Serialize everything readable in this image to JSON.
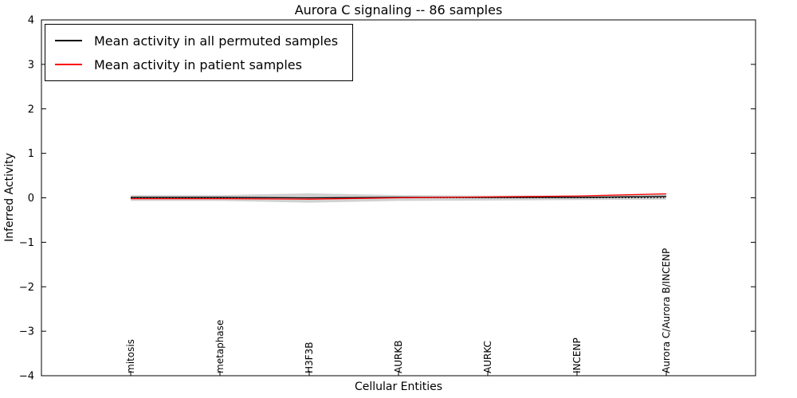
{
  "chart_data": {
    "type": "line",
    "title": "Aurora C signaling -- 86 samples",
    "xlabel": "Cellular Entities",
    "ylabel": "Inferred Activity",
    "categories": [
      "mitosis",
      "metaphase",
      "H3F3B",
      "AURKB",
      "AURKC",
      "INCENP",
      "Aurora C/Aurora B/INCENP"
    ],
    "series": [
      {
        "name": "Mean activity in all permuted samples",
        "color": "#000000",
        "values": [
          0.01,
          0.01,
          0.0,
          0.01,
          0.01,
          0.01,
          0.03
        ]
      },
      {
        "name": "Mean activity in patient samples",
        "color": "#ff0000",
        "values": [
          -0.02,
          -0.02,
          -0.03,
          0.0,
          0.02,
          0.04,
          0.09
        ]
      }
    ],
    "band": {
      "name": "permuted-sample-spread",
      "color": "#999999",
      "opacity": 0.45,
      "upper": [
        0.06,
        0.06,
        0.1,
        0.06,
        0.05,
        0.05,
        0.08
      ],
      "lower": [
        -0.07,
        -0.07,
        -0.11,
        -0.07,
        -0.06,
        -0.05,
        -0.04
      ]
    },
    "reference_line": {
      "y": 0,
      "style": "dotted",
      "color": "#000000"
    },
    "ylim": [
      -4,
      4
    ],
    "yticks": [
      -4,
      -3,
      -2,
      -1,
      0,
      1,
      2,
      3,
      4
    ],
    "legend_position": "upper left",
    "grid": false
  }
}
